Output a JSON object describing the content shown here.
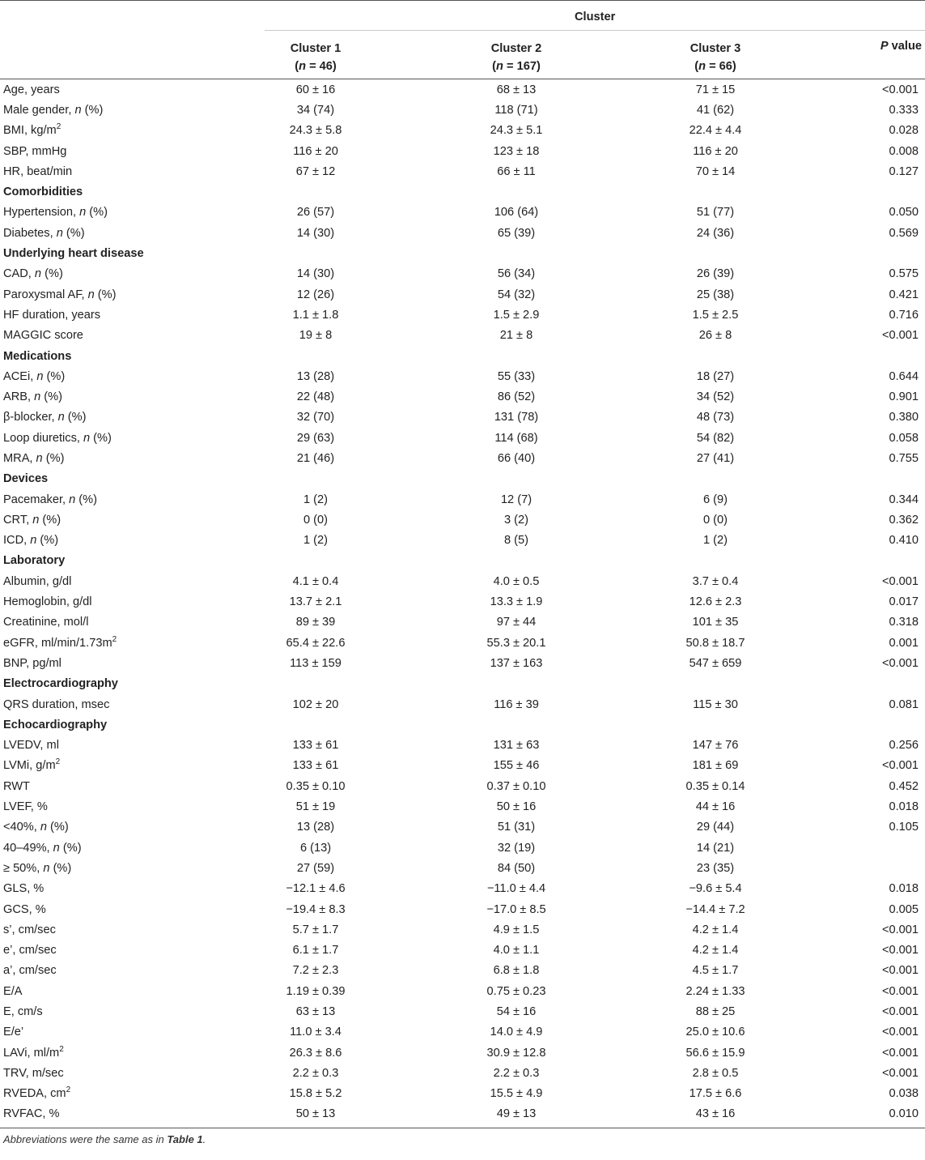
{
  "header": {
    "group_label": "Cluster",
    "cluster1": "Cluster 1",
    "cluster1_n": "(n = 46)",
    "cluster2": "Cluster 2",
    "cluster2_n": "(n = 167)",
    "cluster3": "Cluster 3",
    "cluster3_n": "(n = 66)",
    "pvalue": "P value"
  },
  "rows": [
    {
      "label": "Age, years",
      "c1": "60 ± 16",
      "c2": "68 ± 13",
      "c3": "71 ± 15",
      "p": "<0.001"
    },
    {
      "label": "Male gender, n (%)",
      "c1": "34 (74)",
      "c2": "118 (71)",
      "c3": "41 (62)",
      "p": "0.333"
    },
    {
      "label": "BMI, kg/m²",
      "c1": "24.3 ± 5.8",
      "c2": "24.3 ± 5.1",
      "c3": "22.4 ± 4.4",
      "p": "0.028"
    },
    {
      "label": "SBP, mmHg",
      "c1": "116 ± 20",
      "c2": "123 ± 18",
      "c3": "116 ± 20",
      "p": "0.008"
    },
    {
      "label": "HR, beat/min",
      "c1": "67 ± 12",
      "c2": "66 ± 11",
      "c3": "70 ± 14",
      "p": "0.127"
    },
    {
      "section": "Comorbidities"
    },
    {
      "label": "Hypertension, n (%)",
      "c1": "26 (57)",
      "c2": "106 (64)",
      "c3": "51 (77)",
      "p": "0.050"
    },
    {
      "label": "Diabetes, n (%)",
      "c1": "14 (30)",
      "c2": "65 (39)",
      "c3": "24 (36)",
      "p": "0.569"
    },
    {
      "section": "Underlying heart disease"
    },
    {
      "label": "CAD, n (%)",
      "c1": "14 (30)",
      "c2": "56 (34)",
      "c3": "26 (39)",
      "p": "0.575"
    },
    {
      "label": "Paroxysmal AF, n (%)",
      "c1": "12 (26)",
      "c2": "54 (32)",
      "c3": "25 (38)",
      "p": "0.421"
    },
    {
      "label": "HF duration, years",
      "c1": "1.1 ± 1.8",
      "c2": "1.5 ± 2.9",
      "c3": "1.5 ± 2.5",
      "p": "0.716"
    },
    {
      "label": "MAGGIC score",
      "c1": "19 ± 8",
      "c2": "21 ± 8",
      "c3": "26 ± 8",
      "p": "<0.001"
    },
    {
      "section": "Medications"
    },
    {
      "label": "ACEi, n (%)",
      "c1": "13 (28)",
      "c2": "55 (33)",
      "c3": "18 (27)",
      "p": "0.644"
    },
    {
      "label": "ARB, n (%)",
      "c1": "22 (48)",
      "c2": "86 (52)",
      "c3": "34 (52)",
      "p": "0.901"
    },
    {
      "label": "β-blocker, n (%)",
      "c1": "32 (70)",
      "c2": "131 (78)",
      "c3": "48 (73)",
      "p": "0.380"
    },
    {
      "label": "Loop diuretics, n (%)",
      "c1": "29 (63)",
      "c2": "114 (68)",
      "c3": "54 (82)",
      "p": "0.058"
    },
    {
      "label": "MRA, n (%)",
      "c1": "21 (46)",
      "c2": "66 (40)",
      "c3": "27 (41)",
      "p": "0.755"
    },
    {
      "section": "Devices"
    },
    {
      "label": "Pacemaker, n (%)",
      "c1": "1 (2)",
      "c2": "12 (7)",
      "c3": "6 (9)",
      "p": "0.344"
    },
    {
      "label": "CRT, n (%)",
      "c1": "0 (0)",
      "c2": "3 (2)",
      "c3": "0 (0)",
      "p": "0.362"
    },
    {
      "label": "ICD, n (%)",
      "c1": "1 (2)",
      "c2": "8 (5)",
      "c3": "1 (2)",
      "p": "0.410"
    },
    {
      "section": "Laboratory"
    },
    {
      "label": "Albumin, g/dl",
      "c1": "4.1 ± 0.4",
      "c2": "4.0 ± 0.5",
      "c3": "3.7 ± 0.4",
      "p": "<0.001"
    },
    {
      "label": "Hemoglobin, g/dl",
      "c1": "13.7 ± 2.1",
      "c2": "13.3 ± 1.9",
      "c3": "12.6 ± 2.3",
      "p": "0.017"
    },
    {
      "label": "Creatinine, mol/l",
      "c1": "89 ± 39",
      "c2": "97 ± 44",
      "c3": "101 ± 35",
      "p": "0.318"
    },
    {
      "label": "eGFR, ml/min/1.73m²",
      "c1": "65.4 ± 22.6",
      "c2": "55.3 ± 20.1",
      "c3": "50.8 ± 18.7",
      "p": "0.001"
    },
    {
      "label": "BNP, pg/ml",
      "c1": "113 ± 159",
      "c2": "137 ± 163",
      "c3": "547 ± 659",
      "p": "<0.001"
    },
    {
      "section": "Electrocardiography"
    },
    {
      "label": "QRS duration, msec",
      "c1": "102 ± 20",
      "c2": "116 ± 39",
      "c3": "115 ± 30",
      "p": "0.081"
    },
    {
      "section": "Echocardiography"
    },
    {
      "label": "LVEDV, ml",
      "c1": "133 ± 61",
      "c2": "131 ± 63",
      "c3": "147 ± 76",
      "p": "0.256"
    },
    {
      "label": "LVMi, g/m²",
      "c1": "133 ± 61",
      "c2": "155 ± 46",
      "c3": "181 ± 69",
      "p": "<0.001"
    },
    {
      "label": "RWT",
      "c1": "0.35 ± 0.10",
      "c2": "0.37 ± 0.10",
      "c3": "0.35 ± 0.14",
      "p": "0.452"
    },
    {
      "label": "LVEF, %",
      "c1": "51 ± 19",
      "c2": "50 ± 16",
      "c3": "44 ± 16",
      "p": "0.018"
    },
    {
      "label": "<40%, n (%)",
      "c1": "13 (28)",
      "c2": "51 (31)",
      "c3": "29 (44)",
      "p": "0.105"
    },
    {
      "label": "40–49%, n (%)",
      "c1": "6 (13)",
      "c2": "32 (19)",
      "c3": "14 (21)",
      "p": ""
    },
    {
      "label": "≥ 50%, n (%)",
      "c1": "27 (59)",
      "c2": "84 (50)",
      "c3": "23 (35)",
      "p": ""
    },
    {
      "label": "GLS, %",
      "c1": "−12.1 ± 4.6",
      "c2": "−11.0 ± 4.4",
      "c3": "−9.6 ± 5.4",
      "p": "0.018"
    },
    {
      "label": "GCS, %",
      "c1": "−19.4 ± 8.3",
      "c2": "−17.0 ± 8.5",
      "c3": "−14.4 ± 7.2",
      "p": "0.005"
    },
    {
      "label": "s’, cm/sec",
      "c1": "5.7 ± 1.7",
      "c2": "4.9 ± 1.5",
      "c3": "4.2 ± 1.4",
      "p": "<0.001"
    },
    {
      "label": "e’, cm/sec",
      "c1": "6.1 ± 1.7",
      "c2": "4.0 ± 1.1",
      "c3": "4.2 ± 1.4",
      "p": "<0.001"
    },
    {
      "label": "a’, cm/sec",
      "c1": "7.2 ± 2.3",
      "c2": "6.8 ± 1.8",
      "c3": "4.5 ± 1.7",
      "p": "<0.001"
    },
    {
      "label": "E/A",
      "c1": "1.19 ± 0.39",
      "c2": "0.75 ± 0.23",
      "c3": "2.24 ± 1.33",
      "p": "<0.001"
    },
    {
      "label": "E, cm/s",
      "c1": "63 ± 13",
      "c2": "54 ± 16",
      "c3": "88 ± 25",
      "p": "<0.001"
    },
    {
      "label": "E/e’",
      "c1": "11.0 ± 3.4",
      "c2": "14.0 ± 4.9",
      "c3": "25.0 ± 10.6",
      "p": "<0.001"
    },
    {
      "label": "LAVi, ml/m²",
      "c1": "26.3 ± 8.6",
      "c2": "30.9 ± 12.8",
      "c3": "56.6 ± 15.9",
      "p": "<0.001"
    },
    {
      "label": "TRV, m/sec",
      "c1": "2.2 ± 0.3",
      "c2": "2.2 ± 0.3",
      "c3": "2.8 ± 0.5",
      "p": "<0.001"
    },
    {
      "label": "RVEDA, cm²",
      "c1": "15.8 ± 5.2",
      "c2": "15.5 ± 4.9",
      "c3": "17.5 ± 6.6",
      "p": "0.038"
    },
    {
      "label": "RVFAC, %",
      "c1": "50 ± 13",
      "c2": "49 ± 13",
      "c3": "43 ± 16",
      "p": "0.010"
    }
  ],
  "footnote": "Abbreviations were the same as in Table 1."
}
